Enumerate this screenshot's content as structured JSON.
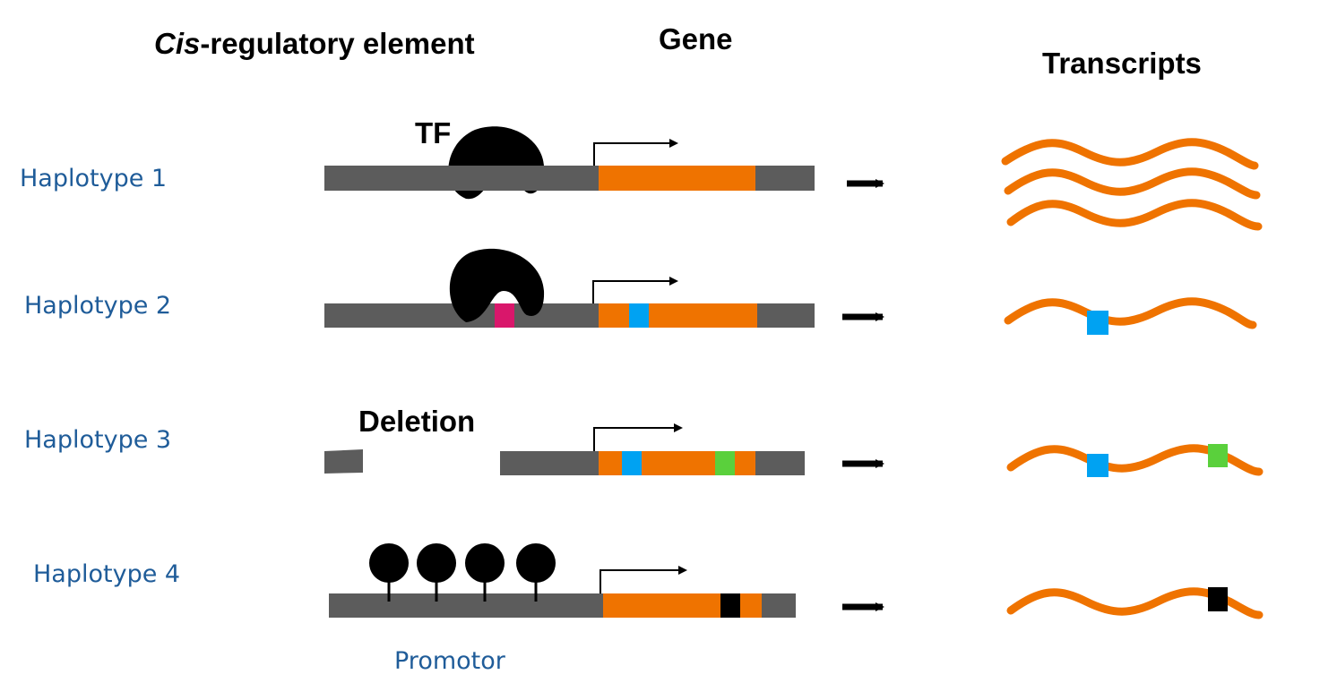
{
  "headers": {
    "cis_italic": "Cis",
    "cis_rest": "-regulatory element",
    "gene": "Gene",
    "transcripts": "Transcripts"
  },
  "haplotypes": [
    {
      "label": "Haplotype 1"
    },
    {
      "label": "Haplotype 2"
    },
    {
      "label": "Haplotype 3"
    },
    {
      "label": "Haplotype 4"
    }
  ],
  "annotations": {
    "tf": "TF",
    "deletion": "Deletion",
    "promotor": "Promotor"
  },
  "colors": {
    "dna": "#5c5c5c",
    "gene": "#ef7300",
    "variant_blue": "#00a2f2",
    "variant_green": "#5ad03c",
    "variant_black": "#000000",
    "variant_magenta": "#d9176b",
    "text_blue": "#1f5c99",
    "tf": "#000000"
  },
  "transcript_counts": [
    3,
    1,
    1,
    1
  ]
}
